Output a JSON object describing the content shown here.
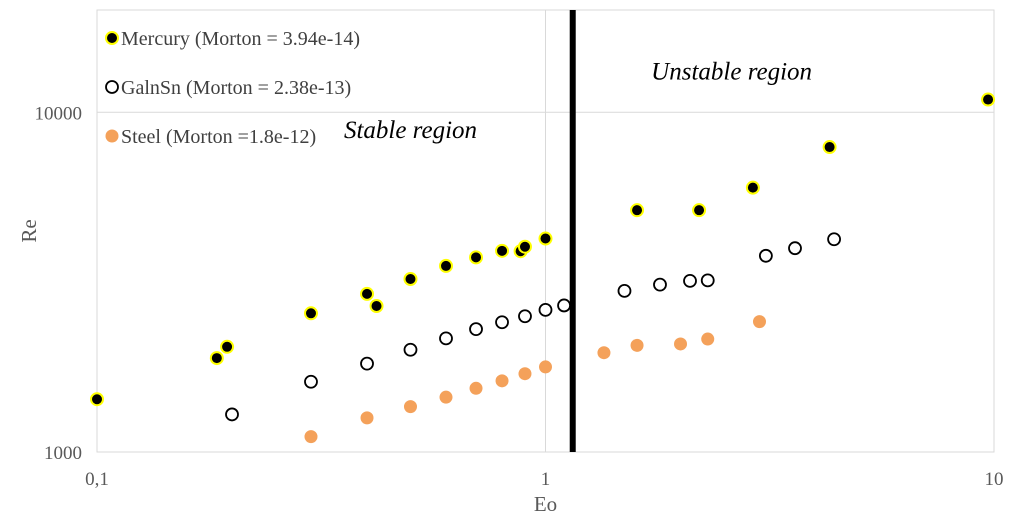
{
  "chart_data": {
    "type": "scatter",
    "xscale": "log",
    "yscale": "log",
    "xlim": [
      0.1,
      10
    ],
    "ylim": [
      1000,
      20000
    ],
    "xlabel": "Eo",
    "ylabel": "Re",
    "xticks": [
      "0,1",
      "1",
      "10"
    ],
    "yticks": [
      "1000",
      "10000"
    ],
    "grid": true,
    "legend_position": "top-left",
    "series": [
      {
        "name": "Mercury (Morton = 3.94e-14)",
        "marker": "filled-black-yellow-edge",
        "color": "#000000",
        "edge_color": "#ffff00",
        "points": [
          [
            0.1,
            1430
          ],
          [
            0.185,
            1890
          ],
          [
            0.195,
            2040
          ],
          [
            0.3,
            2560
          ],
          [
            0.4,
            2920
          ],
          [
            0.42,
            2690
          ],
          [
            0.5,
            3230
          ],
          [
            0.6,
            3530
          ],
          [
            0.7,
            3740
          ],
          [
            0.8,
            3910
          ],
          [
            0.88,
            3900
          ],
          [
            0.9,
            4020
          ],
          [
            1.0,
            4250
          ],
          [
            1.6,
            5150
          ],
          [
            2.2,
            5150
          ],
          [
            2.9,
            6000
          ],
          [
            4.3,
            7900
          ],
          [
            9.7,
            10900
          ]
        ]
      },
      {
        "name": "GalnSn (Morton = 2.38e-13)",
        "marker": "hollow-black",
        "color": "#000000",
        "points": [
          [
            0.2,
            1290
          ],
          [
            0.3,
            1610
          ],
          [
            0.4,
            1820
          ],
          [
            0.5,
            2000
          ],
          [
            0.6,
            2160
          ],
          [
            0.7,
            2300
          ],
          [
            0.8,
            2410
          ],
          [
            0.9,
            2510
          ],
          [
            1.0,
            2620
          ],
          [
            1.1,
            2700
          ],
          [
            1.5,
            2980
          ],
          [
            1.8,
            3110
          ],
          [
            2.1,
            3190
          ],
          [
            2.3,
            3200
          ],
          [
            3.1,
            3780
          ],
          [
            3.6,
            3980
          ],
          [
            4.4,
            4230
          ]
        ]
      },
      {
        "name": "Steel (Morton =1.8e-12)",
        "marker": "filled-orange",
        "color": "#f4a15a",
        "points": [
          [
            0.3,
            1110
          ],
          [
            0.4,
            1260
          ],
          [
            0.5,
            1360
          ],
          [
            0.6,
            1450
          ],
          [
            0.7,
            1540
          ],
          [
            0.8,
            1620
          ],
          [
            0.9,
            1700
          ],
          [
            1.0,
            1780
          ],
          [
            1.35,
            1960
          ],
          [
            1.6,
            2060
          ],
          [
            2.0,
            2080
          ],
          [
            2.3,
            2150
          ],
          [
            3.0,
            2420
          ]
        ]
      }
    ],
    "divider_x": 1.15,
    "annotations": [
      {
        "text": "Unstable region",
        "x": 2.6,
        "y": 12500
      },
      {
        "text": "Stable region",
        "x": 0.5,
        "y": 8400
      }
    ]
  }
}
